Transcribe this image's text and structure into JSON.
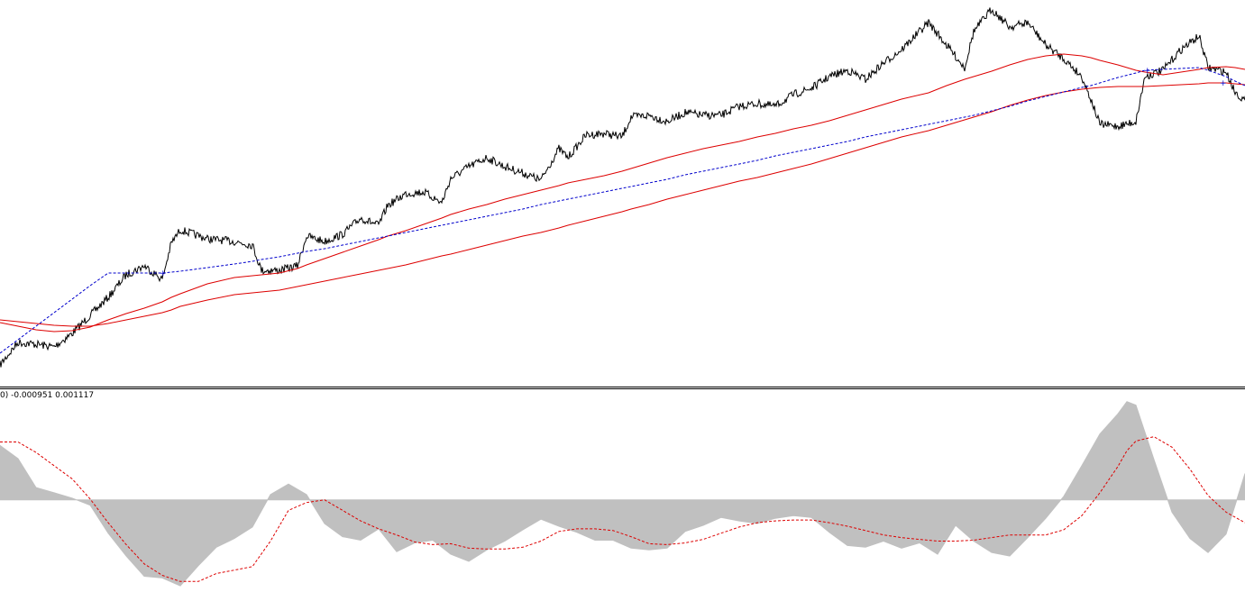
{
  "chart_data": [
    {
      "type": "line",
      "panel": "price",
      "grid": false,
      "x": [
        0,
        20,
        40,
        60,
        80,
        100,
        120,
        140,
        160,
        180,
        190,
        200,
        230,
        260,
        280,
        290,
        310,
        330,
        340,
        360,
        380,
        400,
        420,
        430,
        450,
        470,
        490,
        500,
        520,
        540,
        560,
        580,
        600,
        620,
        630,
        650,
        670,
        690,
        700,
        720,
        740,
        760,
        780,
        800,
        820,
        840,
        860,
        880,
        900,
        920,
        940,
        960,
        980,
        1000,
        1030,
        1050,
        1070,
        1080,
        1100,
        1120,
        1140,
        1160,
        1180,
        1200,
        1210,
        1220,
        1240,
        1260,
        1270,
        1290,
        1310,
        1330,
        1340,
        1360,
        1370,
        1381
      ],
      "ylim": [
        0,
        429
      ],
      "series": [
        {
          "role": "price",
          "color": "#000000",
          "values": [
            405,
            380,
            382,
            385,
            370,
            350,
            330,
            305,
            295,
            310,
            270,
            255,
            265,
            268,
            272,
            300,
            300,
            295,
            262,
            268,
            260,
            242,
            250,
            228,
            215,
            213,
            225,
            198,
            185,
            175,
            185,
            192,
            200,
            165,
            175,
            150,
            148,
            152,
            130,
            128,
            135,
            125,
            128,
            128,
            118,
            115,
            118,
            105,
            98,
            85,
            78,
            88,
            70,
            55,
            25,
            50,
            75,
            35,
            10,
            30,
            25,
            50,
            65,
            85,
            110,
            138,
            140,
            135,
            85,
            78,
            55,
            40,
            75,
            80,
            102,
            112
          ]
        },
        {
          "role": "ma-fast",
          "color": "#dd0000",
          "values": [
            358,
            362,
            366,
            368,
            367,
            363,
            355,
            348,
            342,
            335,
            330,
            326,
            315,
            308,
            306,
            305,
            303,
            298,
            294,
            287,
            280,
            273,
            266,
            262,
            256,
            249,
            242,
            238,
            232,
            227,
            221,
            216,
            211,
            206,
            203,
            199,
            195,
            190,
            187,
            181,
            175,
            170,
            165,
            161,
            157,
            152,
            148,
            143,
            139,
            134,
            128,
            122,
            116,
            110,
            103,
            95,
            88,
            85,
            79,
            72,
            66,
            62,
            60,
            62,
            64,
            67,
            72,
            78,
            80,
            83,
            80,
            77,
            75,
            74,
            75,
            77
          ]
        },
        {
          "role": "ma-slow",
          "color": "#dd0000",
          "values": [
            355,
            357,
            359,
            361,
            362,
            362,
            359,
            355,
            351,
            347,
            344,
            340,
            333,
            327,
            325,
            324,
            322,
            318,
            316,
            312,
            308,
            304,
            300,
            298,
            294,
            289,
            284,
            282,
            277,
            272,
            267,
            262,
            258,
            253,
            250,
            245,
            240,
            235,
            232,
            227,
            221,
            216,
            211,
            206,
            201,
            197,
            192,
            187,
            182,
            176,
            170,
            164,
            158,
            152,
            145,
            139,
            133,
            130,
            124,
            117,
            111,
            106,
            102,
            99,
            98,
            97,
            96,
            96,
            96,
            95,
            94,
            93,
            92,
            92,
            93,
            94
          ]
        },
        {
          "role": "trend",
          "color": "#0000cc",
          "dashed": true,
          "values": [
            392,
            377,
            362,
            347,
            332,
            317,
            303,
            303,
            303,
            303,
            302,
            301,
            297,
            293,
            290,
            288,
            285,
            281,
            279,
            276,
            272,
            268,
            264,
            262,
            258,
            254,
            250,
            248,
            244,
            240,
            236,
            232,
            227,
            223,
            221,
            217,
            213,
            209,
            207,
            203,
            199,
            194,
            190,
            186,
            182,
            178,
            173,
            169,
            165,
            161,
            157,
            152,
            148,
            144,
            138,
            134,
            130,
            128,
            123,
            118,
            112,
            107,
            102,
            97,
            95,
            92,
            86,
            81,
            78,
            77,
            76,
            75,
            78,
            85,
            90,
            95
          ]
        }
      ]
    },
    {
      "type": "area",
      "panel": "oscillator",
      "label": "0) -0.000951 0.001117",
      "grid": false,
      "baseline": 0,
      "ylim": [
        -0.00105,
        0.00125
      ],
      "x": [
        0,
        20,
        40,
        60,
        80,
        100,
        120,
        140,
        160,
        180,
        200,
        220,
        240,
        260,
        280,
        300,
        320,
        340,
        360,
        380,
        400,
        420,
        440,
        460,
        480,
        500,
        520,
        540,
        560,
        580,
        600,
        620,
        640,
        660,
        680,
        700,
        720,
        740,
        760,
        780,
        800,
        820,
        840,
        860,
        880,
        900,
        920,
        940,
        960,
        980,
        1000,
        1020,
        1040,
        1060,
        1080,
        1100,
        1120,
        1140,
        1160,
        1180,
        1200,
        1220,
        1240,
        1250,
        1260,
        1280,
        1300,
        1320,
        1340,
        1360,
        1381
      ],
      "series": [
        {
          "role": "histogram",
          "color": "#c0c0c0",
          "values": [
            0.00062,
            0.00047,
            0.00014,
            8e-05,
            2e-05,
            -6e-05,
            -0.00038,
            -0.00064,
            -0.00087,
            -0.00089,
            -0.00098,
            -0.00075,
            -0.00054,
            -0.00044,
            -0.00031,
            6e-05,
            0.00018,
            6e-05,
            -0.00027,
            -0.00042,
            -0.00046,
            -0.00033,
            -0.00059,
            -0.00049,
            -0.00046,
            -0.00062,
            -0.0007,
            -0.00057,
            -0.00047,
            -0.00034,
            -0.00022,
            -0.0003,
            -0.00037,
            -0.00046,
            -0.00046,
            -0.00055,
            -0.00057,
            -0.00055,
            -0.00036,
            -0.00029,
            -0.0002,
            -0.00024,
            -0.00027,
            -0.00021,
            -0.00018,
            -0.0002,
            -0.00037,
            -0.00052,
            -0.00054,
            -0.00047,
            -0.00055,
            -0.00049,
            -0.00062,
            -0.00029,
            -0.00047,
            -0.0006,
            -0.00064,
            -0.00043,
            -0.00021,
            4e-05,
            0.00039,
            0.00075,
            0.00098,
            0.00112,
            0.00108,
            0.00046,
            -0.00014,
            -0.00044,
            -0.0006,
            -0.00039,
            0.0003
          ]
        },
        {
          "role": "signal",
          "color": "#dd0000",
          "dashed": true,
          "values": [
            0.00066,
            0.00066,
            0.00054,
            0.00039,
            0.00024,
            1e-05,
            -0.00026,
            -0.00051,
            -0.00073,
            -0.00086,
            -0.00093,
            -0.00093,
            -0.00084,
            -0.0008,
            -0.00076,
            -0.00047,
            -0.00012,
            -3e-05,
            0.0,
            -0.00012,
            -0.00024,
            -0.00033,
            -0.0004,
            -0.00048,
            -0.00051,
            -0.0005,
            -0.00055,
            -0.00056,
            -0.00056,
            -0.00054,
            -0.00047,
            -0.00036,
            -0.00033,
            -0.00033,
            -0.00035,
            -0.00042,
            -0.0005,
            -0.00051,
            -0.00049,
            -0.00045,
            -0.00038,
            -0.00031,
            -0.00026,
            -0.00024,
            -0.00023,
            -0.00023,
            -0.00026,
            -0.0003,
            -0.00035,
            -0.0004,
            -0.00043,
            -0.00045,
            -0.00047,
            -0.00047,
            -0.00046,
            -0.00043,
            -0.0004,
            -0.0004,
            -0.0004,
            -0.00034,
            -0.00018,
            8e-05,
            0.00038,
            0.00056,
            0.00067,
            0.00072,
            0.0006,
            0.00035,
            5e-05,
            -0.00014,
            -0.00026
          ]
        }
      ]
    }
  ]
}
